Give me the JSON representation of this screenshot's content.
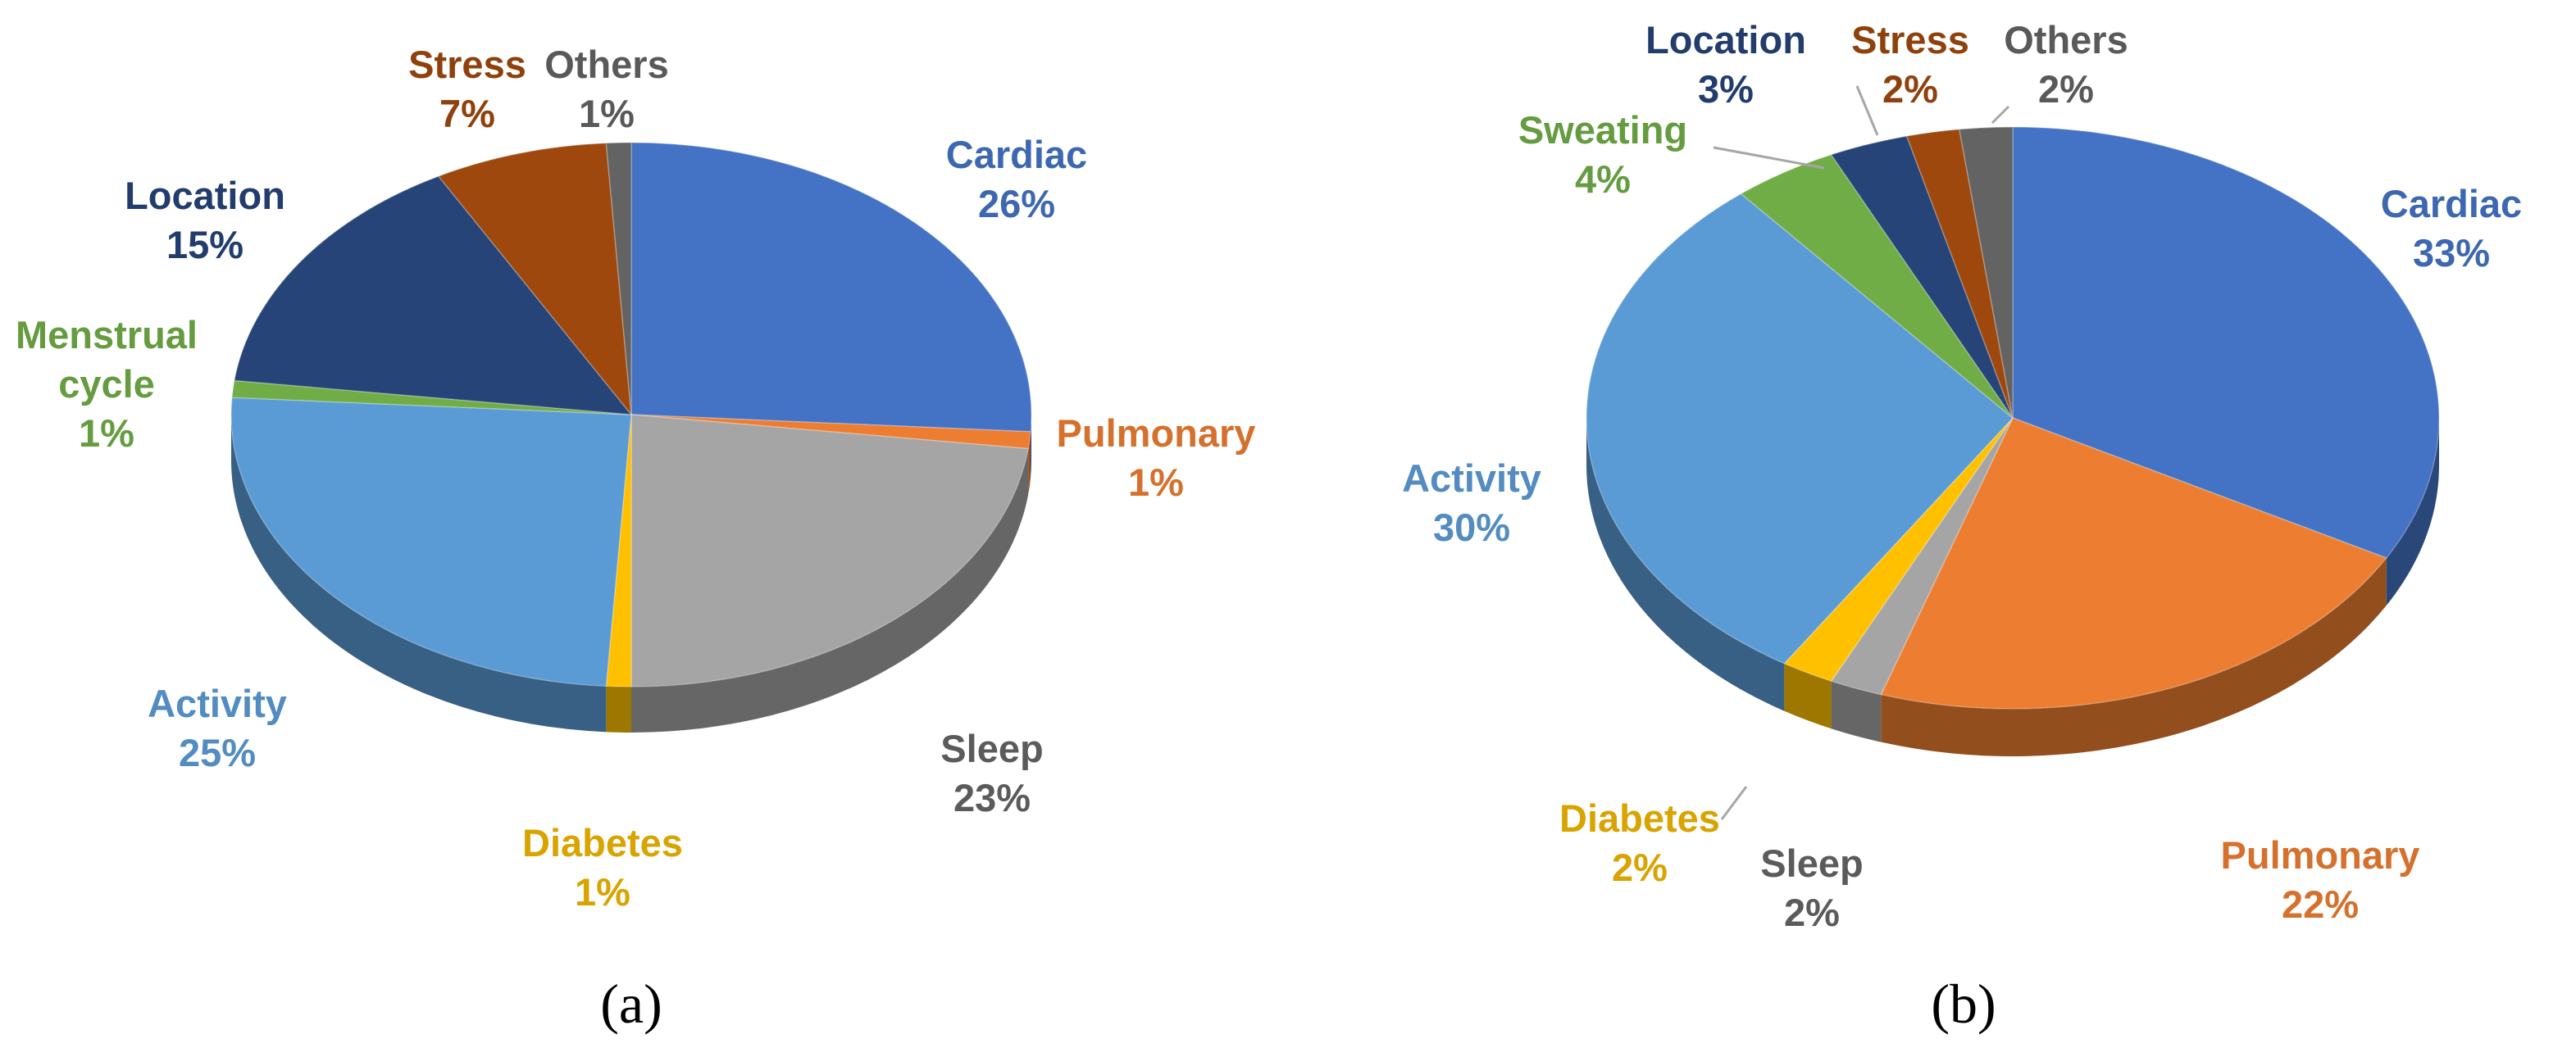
{
  "chart_data": [
    {
      "type": "pie",
      "caption": "(a)",
      "slices": [
        {
          "label": "Cardiac",
          "value": 26,
          "value_label": "26%",
          "color": "#4472C4"
        },
        {
          "label": "Pulmonary",
          "value": 1,
          "value_label": "1%",
          "color": "#ED7D31"
        },
        {
          "label": "Sleep",
          "value": 23,
          "value_label": "23%",
          "color": "#A5A5A5"
        },
        {
          "label": "Diabetes",
          "value": 1,
          "value_label": "1%",
          "color": "#FFC000"
        },
        {
          "label": "Activity",
          "value": 25,
          "value_label": "25%",
          "color": "#5B9BD5"
        },
        {
          "label": "Menstrual cycle",
          "value": 1,
          "value_label": "1%",
          "color": "#70AD47"
        },
        {
          "label": "Location",
          "value": 15,
          "value_label": "15%",
          "color": "#264478"
        },
        {
          "label": "Stress",
          "value": 7,
          "value_label": "7%",
          "color": "#9E480E"
        },
        {
          "label": "Others",
          "value": 1,
          "value_label": "1%",
          "color": "#636363"
        }
      ],
      "legend": "labels on slices",
      "style": "3d"
    },
    {
      "type": "pie",
      "caption": "(b)",
      "slices": [
        {
          "label": "Cardiac",
          "value": 33,
          "value_label": "33%",
          "color": "#4472C4"
        },
        {
          "label": "Pulmonary",
          "value": 22,
          "value_label": "22%",
          "color": "#ED7D31"
        },
        {
          "label": "Sleep",
          "value": 2,
          "value_label": "2%",
          "color": "#A5A5A5"
        },
        {
          "label": "Diabetes",
          "value": 2,
          "value_label": "2%",
          "color": "#FFC000"
        },
        {
          "label": "Activity",
          "value": 30,
          "value_label": "30%",
          "color": "#5B9BD5"
        },
        {
          "label": "Sweating",
          "value": 4,
          "value_label": "4%",
          "color": "#70AD47"
        },
        {
          "label": "Location",
          "value": 3,
          "value_label": "3%",
          "color": "#264478"
        },
        {
          "label": "Stress",
          "value": 2,
          "value_label": "2%",
          "color": "#9E480E"
        },
        {
          "label": "Others",
          "value": 2,
          "value_label": "2%",
          "color": "#636363"
        }
      ],
      "legend": "labels on slices",
      "style": "3d"
    }
  ]
}
